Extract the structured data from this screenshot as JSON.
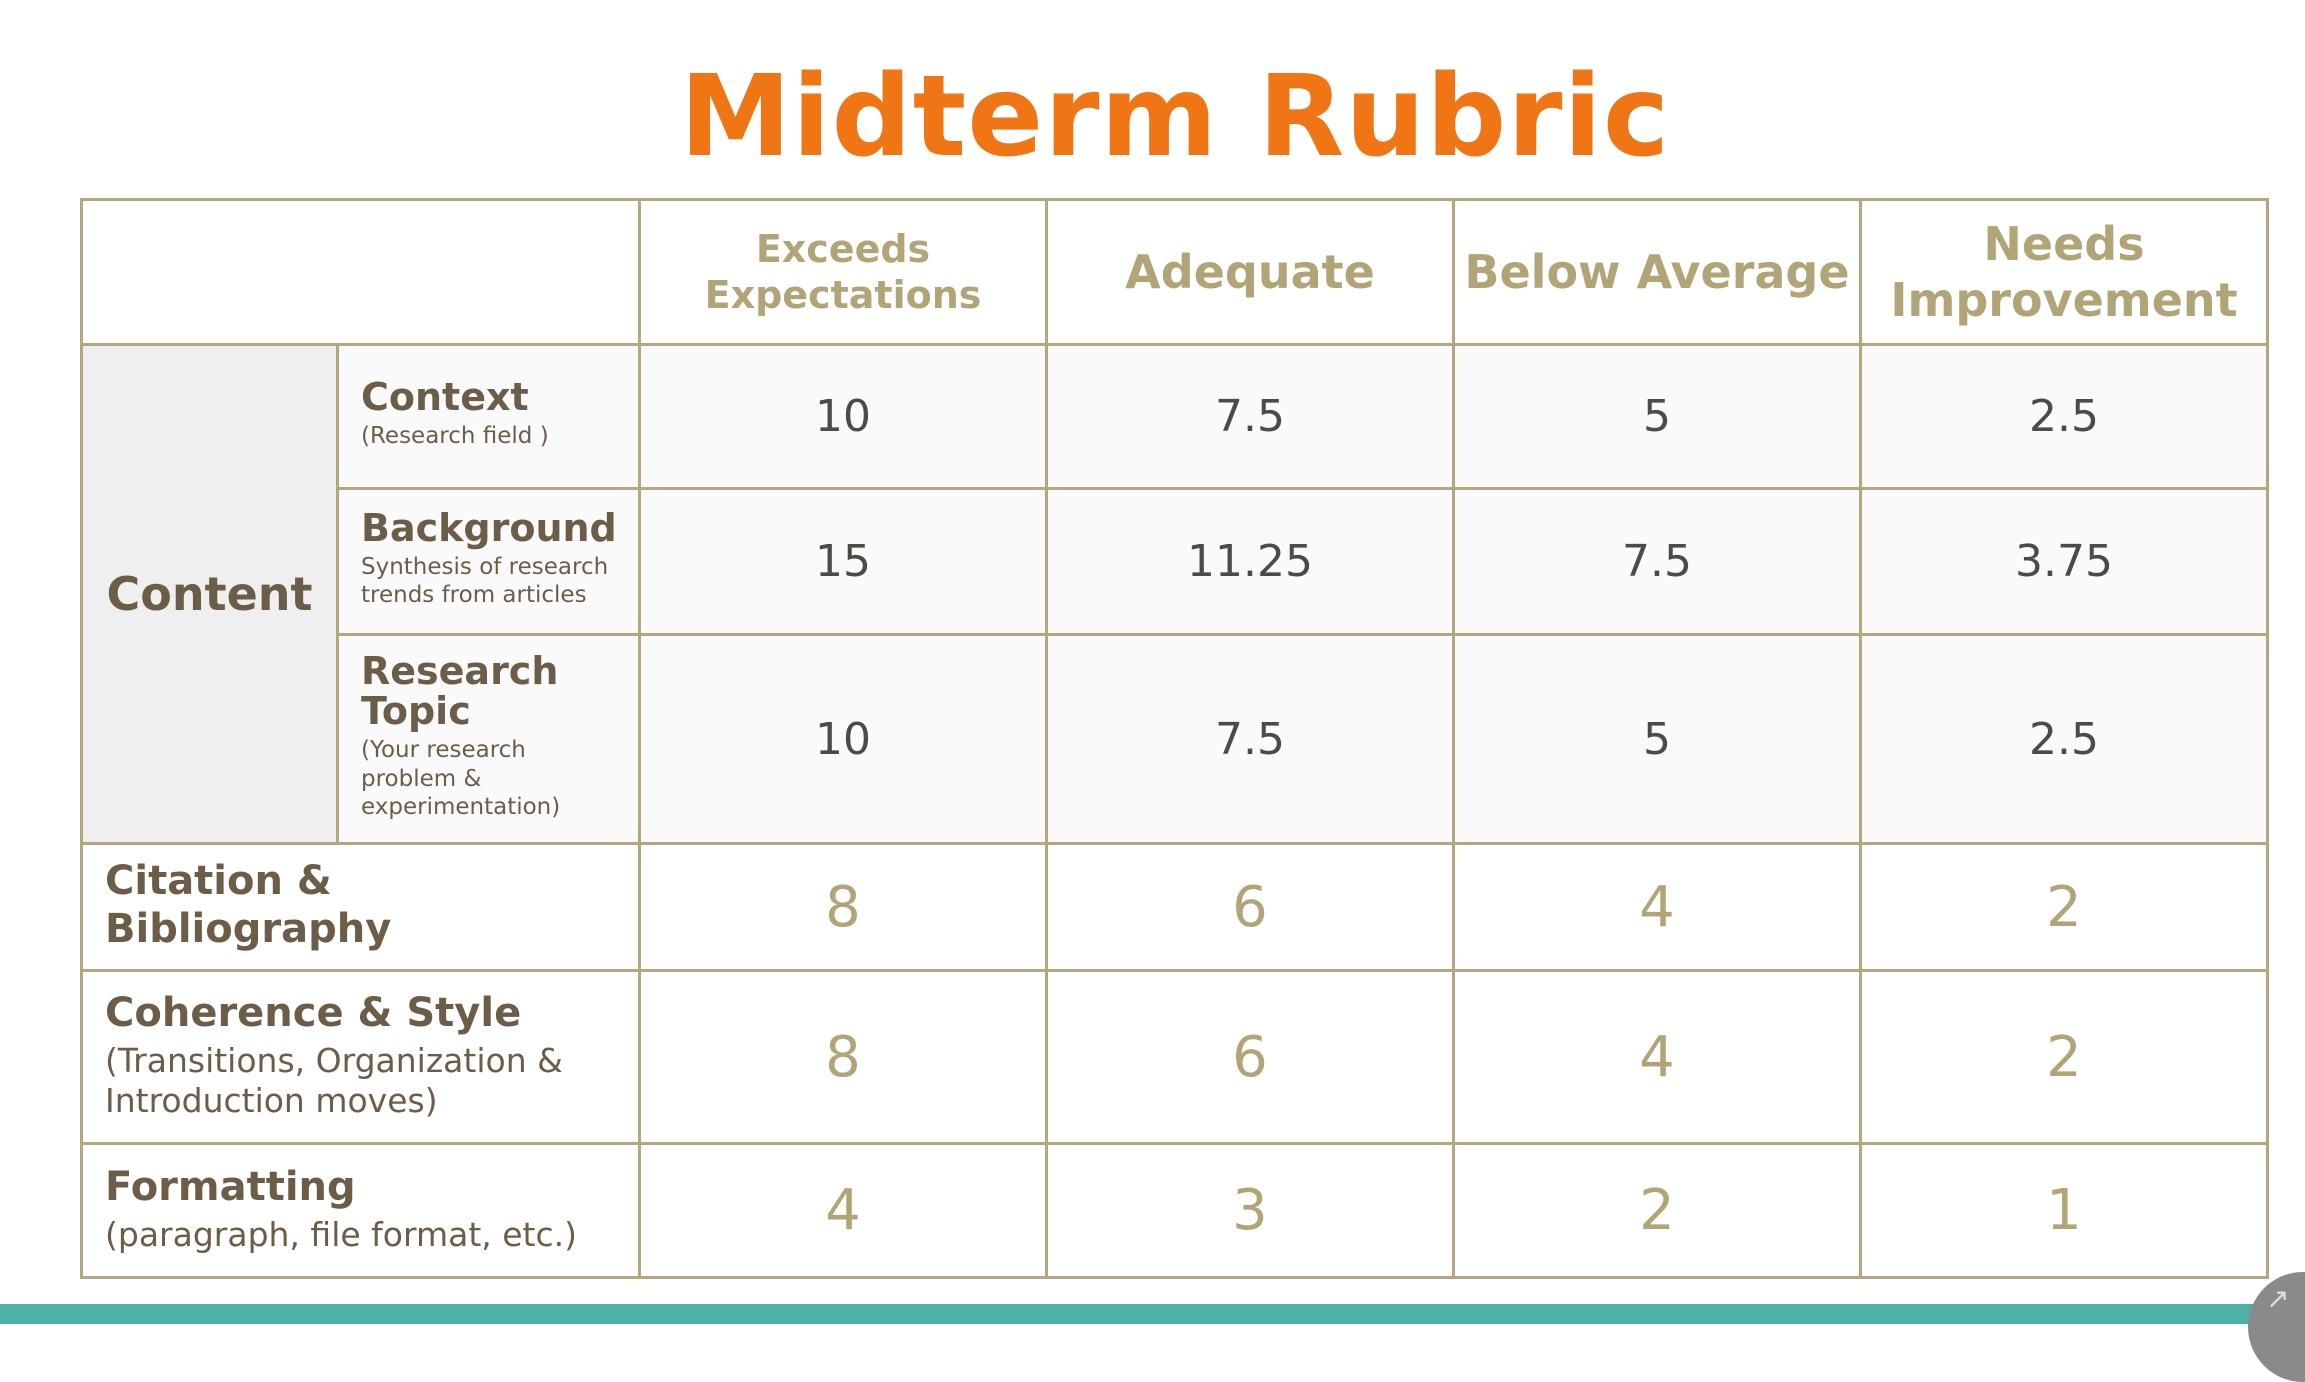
{
  "title": "Midterm Rubric",
  "columns": [
    "Exceeds Expectations",
    "Adequate",
    "Below Average",
    "Needs Improvement"
  ],
  "content_section": {
    "label": "Content",
    "rows": [
      {
        "title": "Context",
        "desc": "(Research field )",
        "scores": [
          "10",
          "7.5",
          "5",
          "2.5"
        ]
      },
      {
        "title": "Background",
        "desc": "Synthesis of research trends from articles",
        "scores": [
          "15",
          "11.25",
          "7.5",
          "3.75"
        ]
      },
      {
        "title": "Research Topic",
        "desc": "(Your research problem & experimentation)",
        "scores": [
          "10",
          "7.5",
          "5",
          "2.5"
        ]
      }
    ]
  },
  "other_rows": [
    {
      "title": "Citation & Bibliography",
      "desc": "",
      "scores": [
        "8",
        "6",
        "4",
        "2"
      ]
    },
    {
      "title": "Coherence & Style",
      "desc": "(Transitions, Organization & Introduction moves)",
      "scores": [
        "8",
        "6",
        "4",
        "2"
      ]
    },
    {
      "title": "Formatting",
      "desc": "(paragraph, file format, etc.)",
      "scores": [
        "4",
        "3",
        "2",
        "1"
      ]
    }
  ],
  "colors": {
    "title": "#f07514",
    "header": "#b1a578",
    "text": "#6b5d48",
    "border": "#b3a77d",
    "footer": "#4fb0a5"
  },
  "icons": [
    "expand-icon"
  ]
}
